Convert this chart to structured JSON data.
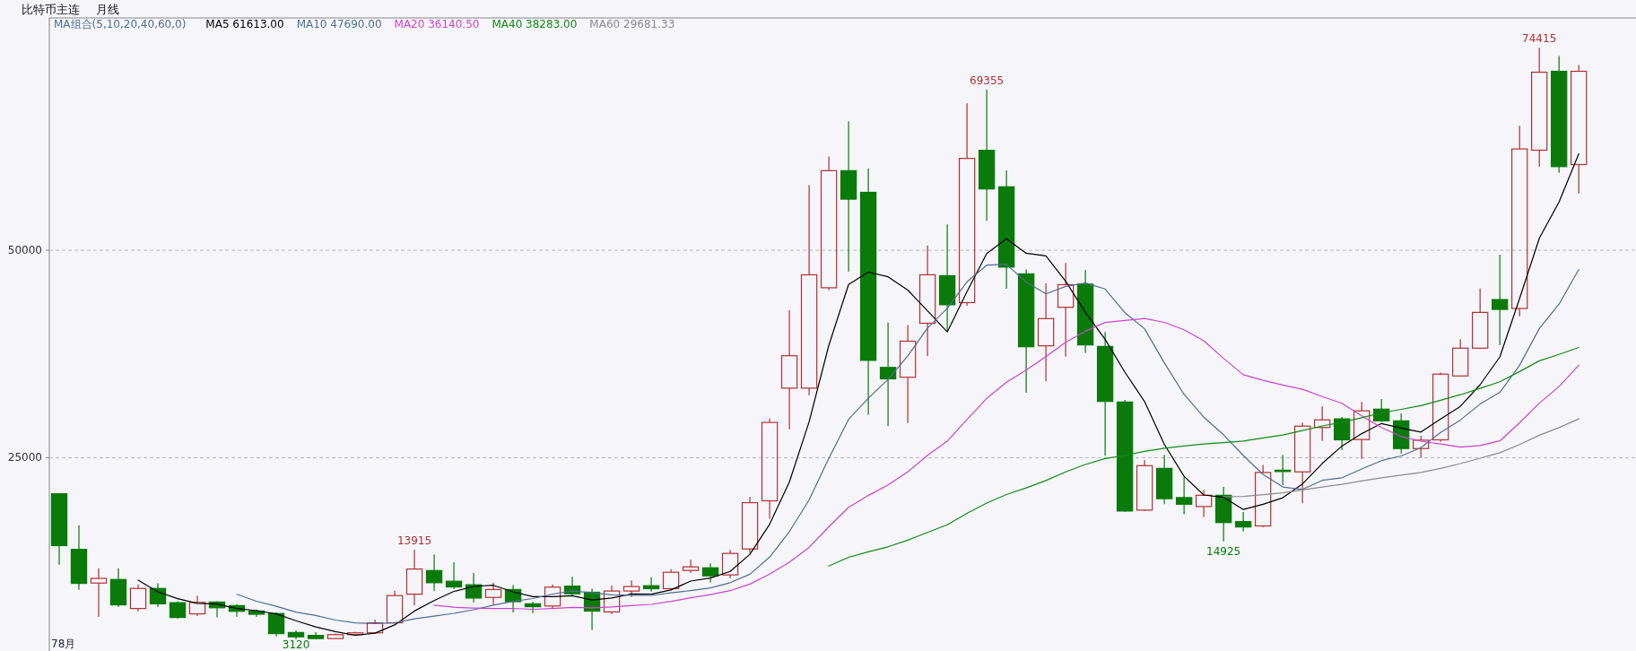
{
  "chart_data": {
    "type": "candlestick",
    "title": "比特币主连",
    "subtitle": "月线",
    "categories": [
      null,
      null,
      null,
      null,
      null,
      null,
      null,
      null,
      null,
      null,
      null,
      null,
      null,
      null,
      null,
      null,
      null,
      null,
      null,
      null,
      null,
      null,
      null,
      null,
      null,
      null,
      null,
      null,
      null,
      null,
      null,
      null,
      null,
      null,
      null,
      null,
      null,
      null,
      null,
      null,
      null,
      null,
      null,
      null,
      null,
      null,
      null,
      null,
      null,
      null,
      null,
      null,
      null,
      null,
      null,
      null,
      null,
      null,
      null,
      null,
      null,
      null,
      null,
      null,
      null,
      null,
      null,
      null,
      null,
      null,
      null,
      null,
      null,
      null,
      null,
      null,
      null,
      null
    ],
    "ohlc": [
      [
        20650,
        20700,
        12100,
        14400
      ],
      [
        13950,
        16850,
        9070,
        9850
      ],
      [
        9890,
        11660,
        5830,
        10450
      ],
      [
        10320,
        11660,
        7000,
        7260
      ],
      [
        6820,
        9720,
        6480,
        9240
      ],
      [
        9240,
        9850,
        7000,
        7390
      ],
      [
        7520,
        7690,
        5610,
        5740
      ],
      [
        6180,
        8340,
        5920,
        7560
      ],
      [
        7600,
        7690,
        5740,
        6910
      ],
      [
        7170,
        7340,
        5830,
        6480
      ],
      [
        6520,
        6690,
        5830,
        6130
      ],
      [
        6220,
        6350,
        3450,
        3800
      ],
      [
        3930,
        4190,
        3120,
        3410
      ],
      [
        3580,
        3970,
        3150,
        3200
      ],
      [
        3200,
        3800,
        3150,
        3670
      ],
      [
        3670,
        4020,
        3500,
        3890
      ],
      [
        3890,
        5490,
        3800,
        5100
      ],
      [
        5100,
        8980,
        5000,
        8380
      ],
      [
        8550,
        13915,
        7210,
        11580
      ],
      [
        11400,
        13350,
        8940,
        9930
      ],
      [
        10110,
        12400,
        9160,
        9420
      ],
      [
        9680,
        11100,
        7560,
        8080
      ],
      [
        8160,
        9930,
        7260,
        9110
      ],
      [
        9110,
        9630,
        6350,
        7640
      ],
      [
        7390,
        7640,
        6260,
        7040
      ],
      [
        7130,
        9720,
        6780,
        9400
      ],
      [
        9520,
        10650,
        8400,
        8600
      ],
      [
        8780,
        9210,
        4250,
        6510
      ],
      [
        6410,
        9570,
        6150,
        8930
      ],
      [
        8930,
        10220,
        8210,
        9470
      ],
      [
        9570,
        10580,
        8850,
        9210
      ],
      [
        9210,
        11550,
        9030,
        11190
      ],
      [
        11410,
        12710,
        11120,
        11840
      ],
      [
        11730,
        12270,
        9930,
        10760
      ],
      [
        10870,
        13890,
        10470,
        13460
      ],
      [
        14000,
        20270,
        13530,
        19580
      ],
      [
        19800,
        29730,
        17640,
        29250
      ],
      [
        33380,
        42760,
        28430,
        37290
      ],
      [
        33380,
        57840,
        32520,
        47040
      ],
      [
        45480,
        61300,
        45180,
        59590
      ],
      [
        59590,
        65540,
        47410,
        56160
      ],
      [
        56980,
        59880,
        30180,
        36730
      ],
      [
        35880,
        41270,
        28800,
        34500
      ],
      [
        34690,
        40980,
        29180,
        39040
      ],
      [
        41200,
        50580,
        37250,
        47040
      ],
      [
        46930,
        53110,
        40270,
        43430
      ],
      [
        43690,
        67700,
        43320,
        61070
      ],
      [
        62040,
        69355,
        53560,
        57390
      ],
      [
        57650,
        59590,
        45370,
        47970
      ],
      [
        47150,
        47680,
        32820,
        38370
      ],
      [
        38480,
        46000,
        34200,
        41760
      ],
      [
        43130,
        48460,
        37180,
        45850
      ],
      [
        45920,
        47600,
        37630,
        38590
      ],
      [
        38410,
        40160,
        25270,
        31780
      ],
      [
        31710,
        31970,
        18490,
        18570
      ],
      [
        18680,
        24710,
        18570,
        24040
      ],
      [
        23710,
        25340,
        19390,
        20060
      ],
      [
        20190,
        22680,
        18180,
        19390
      ],
      [
        19110,
        21120,
        17860,
        20470
      ],
      [
        20470,
        21480,
        14925,
        17180
      ],
      [
        17300,
        18460,
        16090,
        16650
      ],
      [
        16770,
        24130,
        16650,
        23210
      ],
      [
        23490,
        25340,
        21720,
        23330
      ],
      [
        23290,
        29240,
        19510,
        28800
      ],
      [
        28640,
        31170,
        27030,
        29560
      ],
      [
        29680,
        29920,
        25900,
        27150
      ],
      [
        27190,
        31730,
        24820,
        30650
      ],
      [
        30850,
        32060,
        29300,
        29440
      ],
      [
        29440,
        30330,
        25500,
        26100
      ],
      [
        26100,
        27630,
        25020,
        27110
      ],
      [
        27150,
        35270,
        26910,
        35070
      ],
      [
        34850,
        39270,
        34800,
        38200
      ],
      [
        38200,
        45390,
        38090,
        42510
      ],
      [
        44060,
        49460,
        38550,
        42870
      ],
      [
        42980,
        65010,
        42050,
        62210
      ],
      [
        62060,
        74415,
        60080,
        71460
      ],
      [
        71570,
        73400,
        59330,
        60080
      ],
      [
        60330,
        72320,
        56840,
        71570
      ]
    ],
    "series": [
      {
        "name": "MA5 61613.00",
        "type": "line",
        "color": "#000000",
        "values": [
          null,
          null,
          null,
          null,
          10240,
          8838,
          8016,
          7438,
          7368,
          6816,
          6564,
          6176,
          5346,
          4604,
          4042,
          3594,
          3854,
          4848,
          6524,
          7776,
          8882,
          9478,
          9624,
          8836,
          8258,
          8254,
          8358,
          7838,
          8096,
          8582,
          8544,
          9062,
          10128,
          10494,
          11292,
          13366,
          16978,
          22068,
          29324,
          38550,
          45866,
          47362,
          46804,
          45204,
          42694,
          40148,
          45016,
          49594,
          51380,
          49646,
          49312,
          46268,
          42508,
          39270,
          35310,
          31766,
          26608,
          22768,
          20506,
          20228,
          18750,
          19380,
          20168,
          21834,
          24310,
          26410,
          27898,
          29120,
          28580,
          28090,
          29674,
          31184,
          33798,
          37152,
          44172,
          51450,
          55826,
          61613
        ]
      },
      {
        "name": "MA10 47690.00",
        "type": "line",
        "color": "#4f6f8f",
        "values": [
          null,
          null,
          null,
          null,
          null,
          null,
          null,
          null,
          null,
          8528,
          7701,
          7096,
          6392,
          5986,
          5429,
          5079,
          5015,
          5097,
          5564,
          5909,
          6238,
          6666,
          7236,
          7680,
          8017,
          8568,
          8918,
          8731,
          8466,
          8420,
          8399,
          8710,
          8983,
          9295,
          9937,
          10955,
          13020,
          16098,
          19909,
          24921,
          29616,
          32170,
          34436,
          37264,
          40622,
          43007,
          46189,
          48199,
          48292,
          46170,
          44730,
          45642,
          46051,
          45325,
          42478,
          40539,
          36438,
          32638,
          29888,
          27769,
          25258,
          22994,
          21468,
          21170,
          22269,
          22580,
          23639,
          24644,
          25207,
          26200,
          28042,
          29541,
          31459,
          32866,
          36131,
          40562,
          43505,
          47690
        ]
      },
      {
        "name": "MA20 36140.50",
        "type": "line",
        "color": "#cc44cc",
        "values": [
          null,
          null,
          null,
          null,
          null,
          null,
          null,
          null,
          null,
          null,
          null,
          null,
          null,
          null,
          null,
          null,
          null,
          null,
          null,
          7219,
          6970,
          6881,
          6814,
          6833,
          6723,
          6824,
          6967,
          6914,
          7015,
          7165,
          7319,
          7688,
          8110,
          8488,
          8977,
          9762,
          10969,
          12415,
          14188,
          16671,
          19008,
          20440,
          21710,
          23280,
          25280,
          26981,
          29605,
          32149,
          34101,
          35546,
          37173,
          38906,
          40244,
          41295,
          41550,
          41773,
          41314,
          40419,
          39090,
          36970,
          34994,
          34318,
          33760,
          33248,
          32374,
          31560,
          30039,
          28641,
          27548,
          26985,
          26650,
          26268,
          26464,
          27018,
          29200,
          31571,
          33572,
          36140
        ]
      },
      {
        "name": "MA40 38283.00",
        "type": "line",
        "color": "#138a13",
        "values": [
          null,
          null,
          null,
          null,
          null,
          null,
          null,
          null,
          null,
          null,
          null,
          null,
          null,
          null,
          null,
          null,
          null,
          null,
          null,
          null,
          null,
          null,
          null,
          null,
          null,
          null,
          null,
          null,
          null,
          null,
          null,
          null,
          null,
          null,
          null,
          null,
          null,
          null,
          null,
          11945,
          12989,
          13661,
          14262,
          15056,
          16001,
          16902,
          18286,
          19531,
          20558,
          21355,
          22246,
          23297,
          24177,
          24891,
          25264,
          25767,
          26141,
          26417,
          26639,
          26820,
          27001,
          27379,
          27735,
          28264,
          28827,
          29270,
          29822,
          30395,
          30824,
          31265,
          31912,
          32587,
          33354,
          34156,
          35375,
          36672,
          37443,
          38283
        ]
      },
      {
        "name": "MA60 29681.33",
        "type": "line",
        "color": "#8c8c8c",
        "values": [
          null,
          null,
          null,
          null,
          null,
          null,
          null,
          null,
          null,
          null,
          null,
          null,
          null,
          null,
          null,
          null,
          null,
          null,
          null,
          null,
          null,
          null,
          null,
          null,
          null,
          null,
          null,
          null,
          null,
          null,
          null,
          null,
          null,
          null,
          null,
          null,
          null,
          null,
          null,
          null,
          null,
          null,
          null,
          null,
          null,
          null,
          null,
          null,
          null,
          null,
          null,
          null,
          null,
          null,
          null,
          null,
          null,
          null,
          null,
          20286,
          20324,
          20546,
          20761,
          21120,
          21459,
          21788,
          22203,
          22568,
          22888,
          23232,
          23714,
          24287,
          24939,
          25600,
          26576,
          27702,
          28618,
          29681
        ]
      }
    ],
    "ylim": [
      1700,
      78000
    ],
    "yticks": [
      25000,
      50000
    ],
    "grid": "y",
    "legend": "top left",
    "annotations": [
      "MA组合(5,10,20,40,60,0)",
      "78月",
      {
        "text": "13915",
        "y": 13915
      },
      {
        "text": "3120",
        "y": 3120
      },
      {
        "text": "69355",
        "y": 69355
      },
      {
        "text": "14925",
        "y": 14925
      },
      {
        "text": "74415",
        "y": 74415
      }
    ]
  }
}
